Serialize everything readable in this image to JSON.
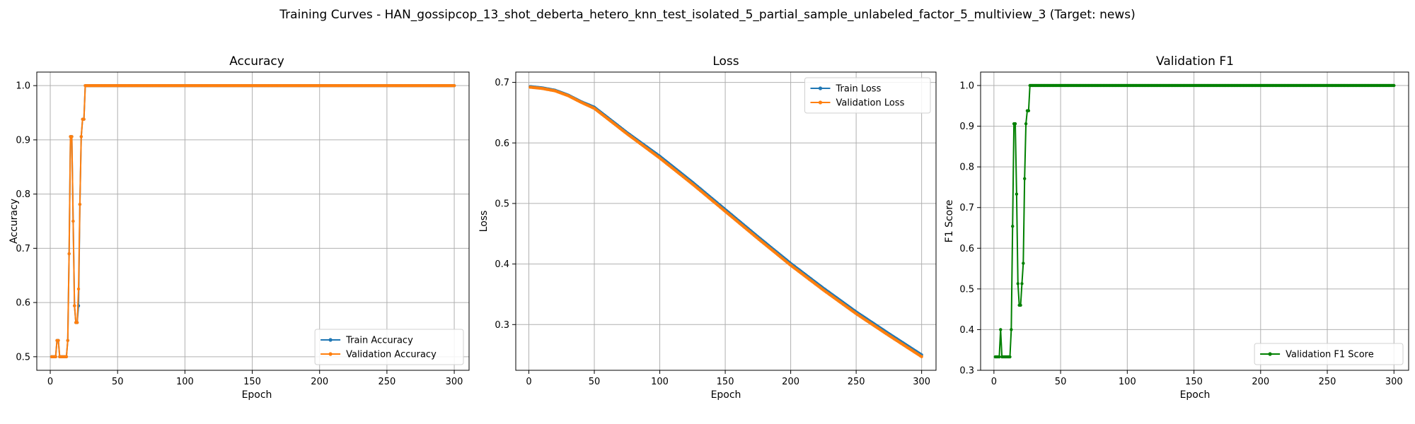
{
  "figure": {
    "suptitle": "Training Curves - HAN_gossipcop_13_shot_deberta_hetero_knn_test_isolated_5_partial_sample_unlabeled_factor_5_multiview_3 (Target: news)"
  },
  "colors": {
    "train": "#1f77b4",
    "validation": "#ff7f0e",
    "f1": "#008000",
    "grid": "#b0b0b0"
  },
  "chart_data": [
    {
      "type": "line",
      "title": "Accuracy",
      "xlabel": "Epoch",
      "ylabel": "Accuracy",
      "xlim": [
        -10,
        311
      ],
      "ylim": [
        0.475,
        1.025
      ],
      "xticks": [
        0,
        50,
        100,
        150,
        200,
        250,
        300
      ],
      "yticks": [
        0.5,
        0.6,
        0.7,
        0.8,
        0.9,
        1.0
      ],
      "ytick_labels": [
        "0.5",
        "0.6",
        "0.7",
        "0.8",
        "0.9",
        "1.0"
      ],
      "grid": true,
      "legend": "lower right",
      "epochs": [
        1,
        300
      ],
      "series": [
        {
          "name": "Train Accuracy",
          "color": "#1f77b4",
          "values": [
            0.5,
            0.5,
            0.5,
            0.5,
            0.53,
            0.53,
            0.5,
            0.5,
            0.5,
            0.5,
            0.5,
            0.5,
            0.53,
            0.69,
            0.906,
            0.906,
            0.75,
            0.594,
            0.563,
            0.563,
            0.594,
            0.781,
            0.906,
            0.938,
            0.938,
            1.0
          ],
          "final_value": 1.0
        },
        {
          "name": "Validation Accuracy",
          "color": "#ff7f0e",
          "values": [
            0.5,
            0.5,
            0.5,
            0.5,
            0.53,
            0.53,
            0.5,
            0.5,
            0.5,
            0.5,
            0.5,
            0.5,
            0.53,
            0.69,
            0.906,
            0.906,
            0.75,
            0.594,
            0.563,
            0.563,
            0.625,
            0.781,
            0.906,
            0.938,
            0.938,
            1.0
          ],
          "final_value": 1.0
        }
      ]
    },
    {
      "type": "line",
      "title": "Loss",
      "xlabel": "Epoch",
      "ylabel": "Loss",
      "xlim": [
        -10,
        311
      ],
      "ylim": [
        0.2245,
        0.717
      ],
      "xticks": [
        0,
        50,
        100,
        150,
        200,
        250,
        300
      ],
      "yticks": [
        0.3,
        0.4,
        0.5,
        0.6,
        0.7
      ],
      "ytick_labels": [
        "0.3",
        "0.4",
        "0.5",
        "0.6",
        "0.7"
      ],
      "grid": true,
      "legend": "upper right",
      "epochs": [
        1,
        300
      ],
      "series": [
        {
          "name": "Train Loss",
          "color": "#1f77b4",
          "knots": [
            [
              1,
              0.693
            ],
            [
              10,
              0.691
            ],
            [
              20,
              0.687
            ],
            [
              30,
              0.679
            ],
            [
              40,
              0.668
            ],
            [
              50,
              0.659
            ],
            [
              75,
              0.617
            ],
            [
              100,
              0.578
            ],
            [
              125,
              0.535
            ],
            [
              150,
              0.49
            ],
            [
              175,
              0.445
            ],
            [
              200,
              0.401
            ],
            [
              225,
              0.36
            ],
            [
              250,
              0.321
            ],
            [
              275,
              0.285
            ],
            [
              300,
              0.25
            ]
          ]
        },
        {
          "name": "Validation Loss",
          "color": "#ff7f0e",
          "knots": [
            [
              1,
              0.692
            ],
            [
              10,
              0.69
            ],
            [
              20,
              0.686
            ],
            [
              30,
              0.678
            ],
            [
              40,
              0.667
            ],
            [
              50,
              0.657
            ],
            [
              75,
              0.615
            ],
            [
              100,
              0.575
            ],
            [
              125,
              0.532
            ],
            [
              150,
              0.487
            ],
            [
              175,
              0.442
            ],
            [
              200,
              0.398
            ],
            [
              225,
              0.357
            ],
            [
              250,
              0.318
            ],
            [
              275,
              0.282
            ],
            [
              300,
              0.247
            ]
          ]
        }
      ]
    },
    {
      "type": "line",
      "title": "Validation F1",
      "xlabel": "Epoch",
      "ylabel": "F1 Score",
      "xlim": [
        -10,
        311
      ],
      "ylim": [
        0.3,
        1.033
      ],
      "xticks": [
        0,
        50,
        100,
        150,
        200,
        250,
        300
      ],
      "yticks": [
        0.3,
        0.4,
        0.5,
        0.6,
        0.7,
        0.8,
        0.9,
        1.0
      ],
      "ytick_labels": [
        "0.3",
        "0.4",
        "0.5",
        "0.6",
        "0.7",
        "0.8",
        "0.9",
        "1.0"
      ],
      "grid": true,
      "legend": "lower right",
      "epochs": [
        1,
        300
      ],
      "series": [
        {
          "name": "Validation F1 Score",
          "color": "#008000",
          "values": [
            0.333,
            0.333,
            0.333,
            0.333,
            0.4,
            0.333,
            0.333,
            0.333,
            0.333,
            0.333,
            0.333,
            0.333,
            0.4,
            0.654,
            0.906,
            0.906,
            0.733,
            0.513,
            0.46,
            0.46,
            0.513,
            0.563,
            0.771,
            0.906,
            0.938,
            0.938,
            1.0
          ],
          "final_value": 1.0
        }
      ]
    }
  ]
}
